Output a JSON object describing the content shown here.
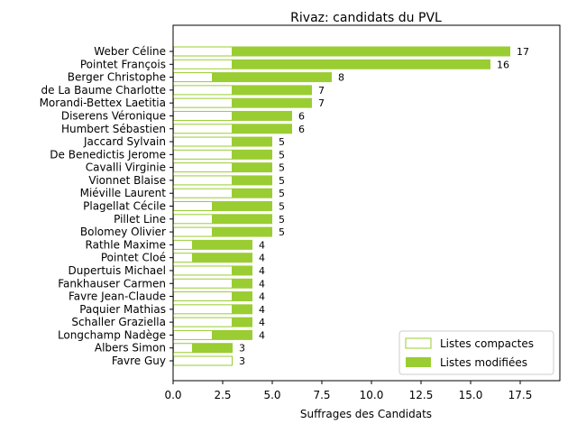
{
  "chart_data": {
    "type": "bar",
    "orientation": "horizontal",
    "stacked": true,
    "title": "Rivaz: candidats du PVL",
    "xlabel": "Suffrages des Candidats",
    "ylabel": "",
    "xlim": [
      0,
      19.5
    ],
    "xticks": [
      "0.0",
      "2.5",
      "5.0",
      "7.5",
      "10.0",
      "12.5",
      "15.0",
      "17.5"
    ],
    "grid": false,
    "legend_position": "lower-right",
    "colors": {
      "modified": "#9acd32",
      "compact_edge": "#9acd32",
      "compact_fill": "#ffffff"
    },
    "categories": [
      "Weber Céline",
      "Pointet François",
      "Berger Christophe",
      "de La Baume Charlotte",
      "Morandi-Bettex Laetitia",
      "Diserens Véronique",
      "Humbert Sébastien",
      "Jaccard Sylvain",
      "De Benedictis Jerome",
      "Cavalli Virginie",
      "Vionnet Blaise",
      "Miéville Laurent",
      "Plagellat Cécile",
      "Pillet Line",
      "Bolomey Olivier",
      "Rathle Maxime",
      "Pointet Cloé",
      "Dupertuis Michael",
      "Fankhauser Carmen",
      "Favre Jean-Claude",
      "Paquier Mathias",
      "Schaller Graziella",
      "Longchamp Nadège",
      "Albers Simon",
      "Favre Guy"
    ],
    "series": [
      {
        "name": "Listes compactes",
        "values": [
          3,
          3,
          2,
          3,
          3,
          3,
          3,
          3,
          3,
          3,
          3,
          3,
          2,
          2,
          2,
          1,
          1,
          3,
          3,
          3,
          3,
          3,
          2,
          1,
          3
        ]
      },
      {
        "name": "Listes modifiées",
        "values": [
          14,
          13,
          6,
          4,
          4,
          3,
          3,
          2,
          2,
          2,
          2,
          2,
          3,
          3,
          3,
          3,
          3,
          1,
          1,
          1,
          1,
          1,
          2,
          2,
          0
        ]
      }
    ],
    "totals": [
      "17",
      "16",
      "8",
      "7",
      "7",
      "6",
      "6",
      "5",
      "5",
      "5",
      "5",
      "5",
      "5",
      "5",
      "5",
      "4",
      "4",
      "4",
      "4",
      "4",
      "4",
      "4",
      "4",
      "3",
      "3"
    ]
  }
}
